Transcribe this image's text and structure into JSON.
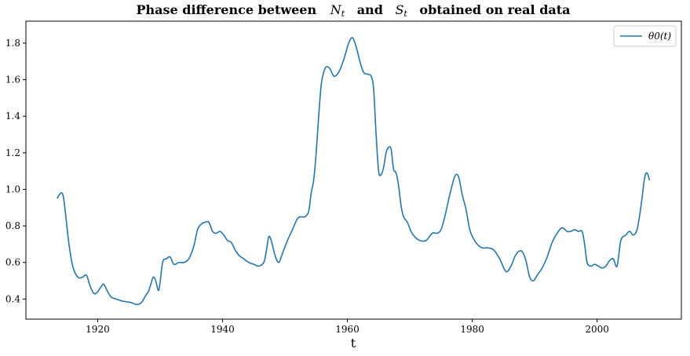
{
  "chart_data": {
    "type": "line",
    "title": {
      "prefix": "Phase difference between",
      "var1": "N",
      "var1_sub": "t",
      "conj": "and",
      "var2": "S",
      "var2_sub": "t",
      "suffix": "obtained on real data"
    },
    "xlabel": "t",
    "ylabel": "",
    "xlim": [
      1908.5,
      2013.5
    ],
    "ylim": [
      0.29,
      1.92
    ],
    "x_ticks": [
      1920,
      1940,
      1960,
      1980,
      2000
    ],
    "x_tick_labels": [
      "1920",
      "1940",
      "1960",
      "1980",
      "2000"
    ],
    "y_ticks": [
      0.4,
      0.6,
      0.8,
      1.0,
      1.2,
      1.4,
      1.6,
      1.8
    ],
    "y_tick_labels": [
      "0.4",
      "0.6",
      "0.8",
      "1.0",
      "1.2",
      "1.4",
      "1.6",
      "1.8"
    ],
    "grid": false,
    "legend_position": "top-right",
    "series": [
      {
        "name": "θ0(t)",
        "color": "#1f77b4",
        "x": [
          1913.5,
          1914.1,
          1914.5,
          1914.9,
          1915.4,
          1916.0,
          1916.8,
          1917.6,
          1918.2,
          1918.8,
          1919.4,
          1920.0,
          1920.6,
          1921.0,
          1921.6,
          1922.2,
          1923.0,
          1923.8,
          1924.6,
          1925.4,
          1926.2,
          1926.8,
          1927.2,
          1927.7,
          1928.1,
          1928.5,
          1928.9,
          1929.3,
          1929.8,
          1930.4,
          1931.0,
          1931.6,
          1932.2,
          1933.0,
          1933.8,
          1934.6,
          1935.4,
          1936.0,
          1936.6,
          1937.2,
          1937.8,
          1938.4,
          1939.0,
          1939.6,
          1940.2,
          1940.8,
          1941.4,
          1942.0,
          1942.6,
          1943.4,
          1944.2,
          1945.0,
          1945.8,
          1946.6,
          1947.0,
          1947.4,
          1947.8,
          1948.4,
          1949.0,
          1949.6,
          1950.4,
          1951.2,
          1952.0,
          1952.6,
          1953.2,
          1953.8,
          1954.2,
          1954.6,
          1955.0,
          1955.4,
          1955.8,
          1956.2,
          1956.6,
          1957.2,
          1957.8,
          1958.4,
          1959.0,
          1959.6,
          1960.2,
          1960.8,
          1961.4,
          1962.0,
          1962.6,
          1963.2,
          1963.8,
          1964.2,
          1964.6,
          1965.0,
          1965.4,
          1965.8,
          1966.2,
          1966.6,
          1967.0,
          1967.4,
          1967.8,
          1968.2,
          1968.6,
          1969.0,
          1969.6,
          1970.2,
          1970.8,
          1971.6,
          1972.6,
          1973.6,
          1974.4,
          1975.0,
          1975.6,
          1976.4,
          1977.2,
          1977.8,
          1978.4,
          1979.0,
          1979.6,
          1980.2,
          1980.8,
          1981.6,
          1982.4,
          1983.4,
          1984.4,
          1985.4,
          1986.2,
          1986.8,
          1987.4,
          1988.0,
          1988.6,
          1989.2,
          1989.8,
          1990.4,
          1991.2,
          1992.0,
          1992.8,
          1993.6,
          1994.4,
          1995.2,
          1995.8,
          1996.4,
          1997.0,
          1997.6,
          1998.0,
          1998.4,
          1999.0,
          1999.6,
          2000.2,
          2000.8,
          2001.4,
          2002.0,
          2002.6,
          2003.2,
          2003.8,
          2004.6,
          2005.2,
          2005.8,
          2006.4,
          2007.0,
          2007.6,
          2008.0,
          2008.4
        ],
        "y": [
          0.95,
          0.98,
          0.96,
          0.85,
          0.7,
          0.58,
          0.52,
          0.52,
          0.53,
          0.47,
          0.43,
          0.44,
          0.47,
          0.48,
          0.44,
          0.41,
          0.4,
          0.39,
          0.385,
          0.38,
          0.37,
          0.375,
          0.39,
          0.42,
          0.44,
          0.48,
          0.52,
          0.5,
          0.45,
          0.6,
          0.62,
          0.63,
          0.59,
          0.6,
          0.6,
          0.62,
          0.69,
          0.78,
          0.81,
          0.82,
          0.82,
          0.77,
          0.76,
          0.77,
          0.75,
          0.72,
          0.71,
          0.67,
          0.64,
          0.62,
          0.6,
          0.59,
          0.58,
          0.6,
          0.66,
          0.74,
          0.72,
          0.64,
          0.6,
          0.65,
          0.72,
          0.78,
          0.84,
          0.85,
          0.85,
          0.88,
          0.98,
          1.05,
          1.2,
          1.4,
          1.57,
          1.64,
          1.67,
          1.66,
          1.62,
          1.63,
          1.67,
          1.73,
          1.8,
          1.83,
          1.78,
          1.7,
          1.64,
          1.63,
          1.62,
          1.55,
          1.3,
          1.1,
          1.08,
          1.12,
          1.2,
          1.23,
          1.22,
          1.11,
          1.09,
          1.02,
          0.91,
          0.85,
          0.82,
          0.77,
          0.74,
          0.72,
          0.72,
          0.76,
          0.76,
          0.78,
          0.85,
          0.97,
          1.07,
          1.07,
          0.97,
          0.89,
          0.78,
          0.73,
          0.7,
          0.68,
          0.68,
          0.67,
          0.62,
          0.55,
          0.58,
          0.63,
          0.66,
          0.66,
          0.61,
          0.52,
          0.5,
          0.53,
          0.57,
          0.63,
          0.71,
          0.76,
          0.79,
          0.77,
          0.77,
          0.78,
          0.77,
          0.77,
          0.7,
          0.6,
          0.58,
          0.59,
          0.58,
          0.57,
          0.58,
          0.61,
          0.62,
          0.58,
          0.72,
          0.75,
          0.77,
          0.75,
          0.78,
          0.9,
          1.06,
          1.09,
          1.05
        ]
      }
    ]
  }
}
